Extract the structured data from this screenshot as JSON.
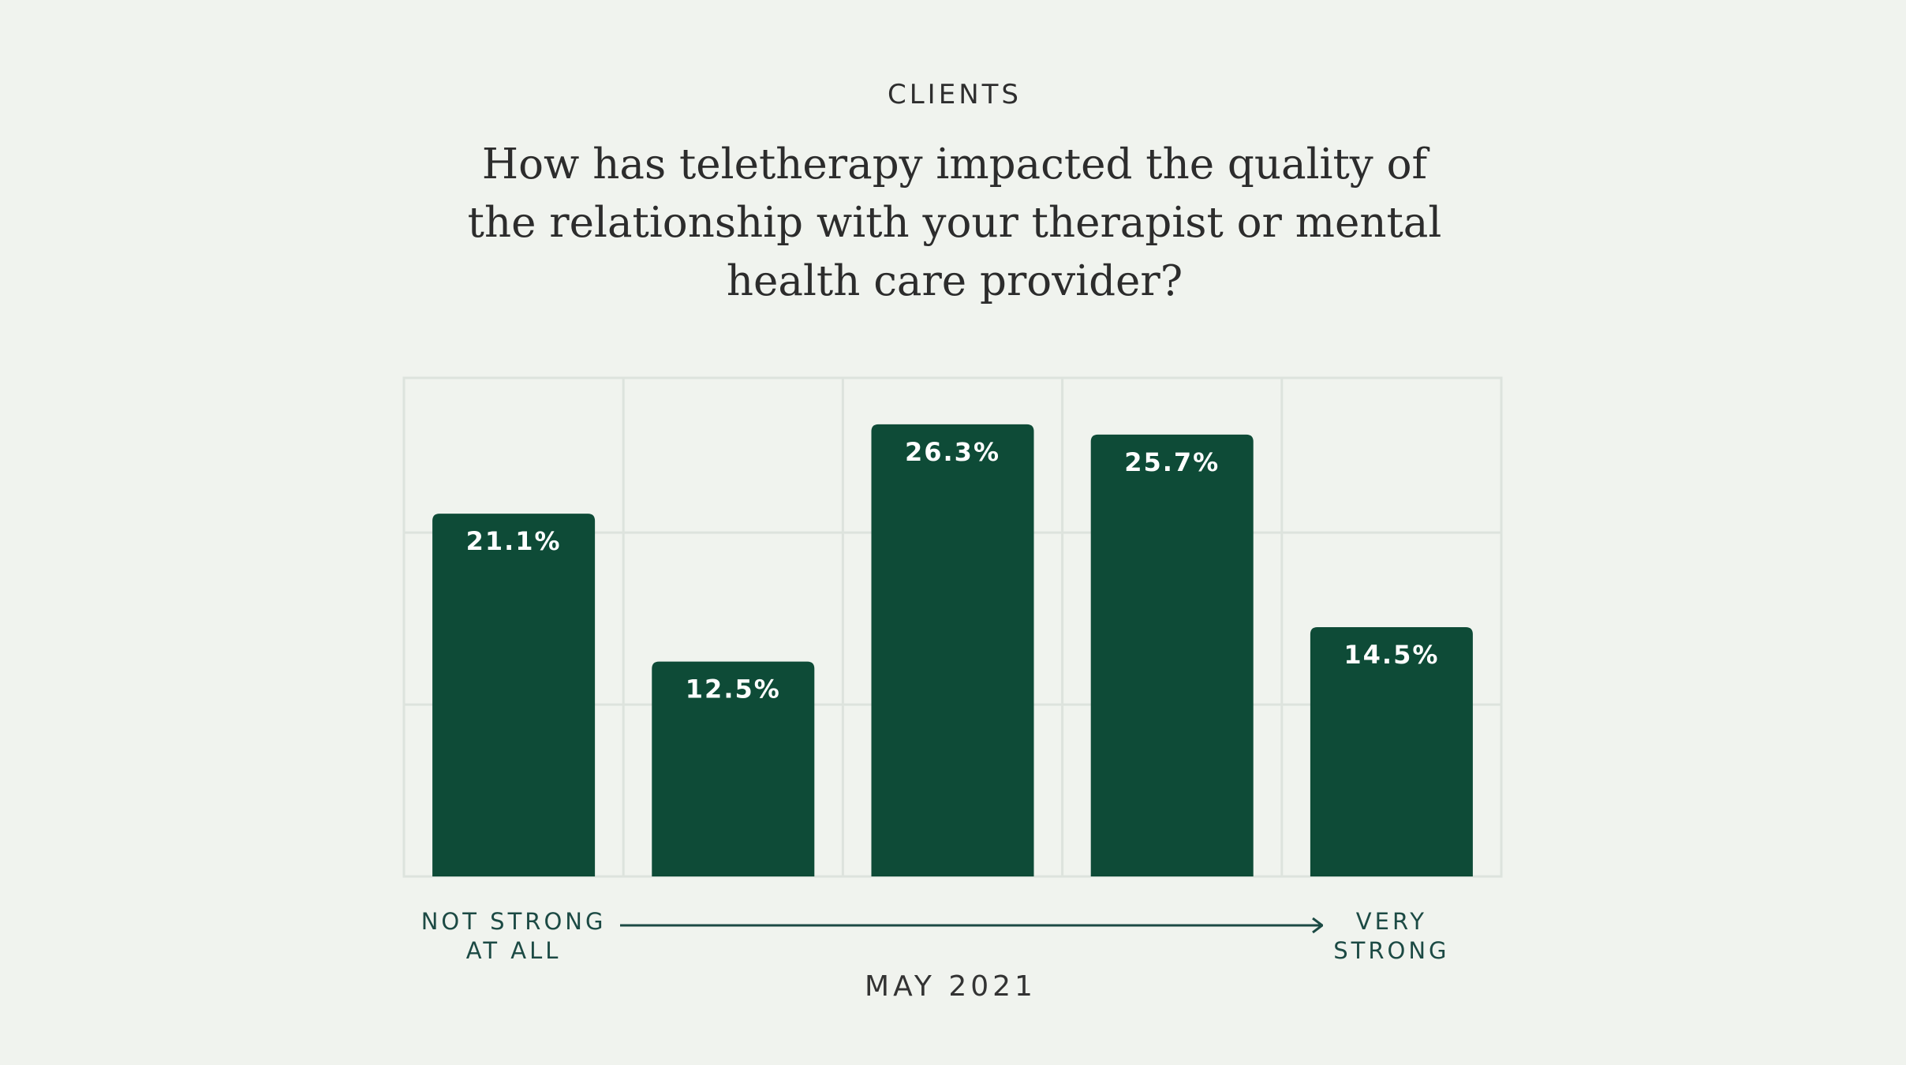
{
  "chart_data": {
    "type": "bar",
    "eyebrow": "CLIENTS",
    "title": "How has teletherapy impacted the quality of the relationship with your therapist or mental health care provider?",
    "x_label": "MAY 2021",
    "categories": [
      "NOT STRONG\nAT ALL",
      null,
      null,
      null,
      "VERY\nSTRONG"
    ],
    "values": [
      21.1,
      12.5,
      26.3,
      25.7,
      14.5
    ],
    "value_labels": [
      "21.1%",
      "12.5%",
      "26.3%",
      "25.7%",
      "14.5%"
    ],
    "color": "#0e4b37",
    "ylim": [
      0,
      29
    ],
    "yticks": [
      10,
      20
    ],
    "grid": true
  }
}
